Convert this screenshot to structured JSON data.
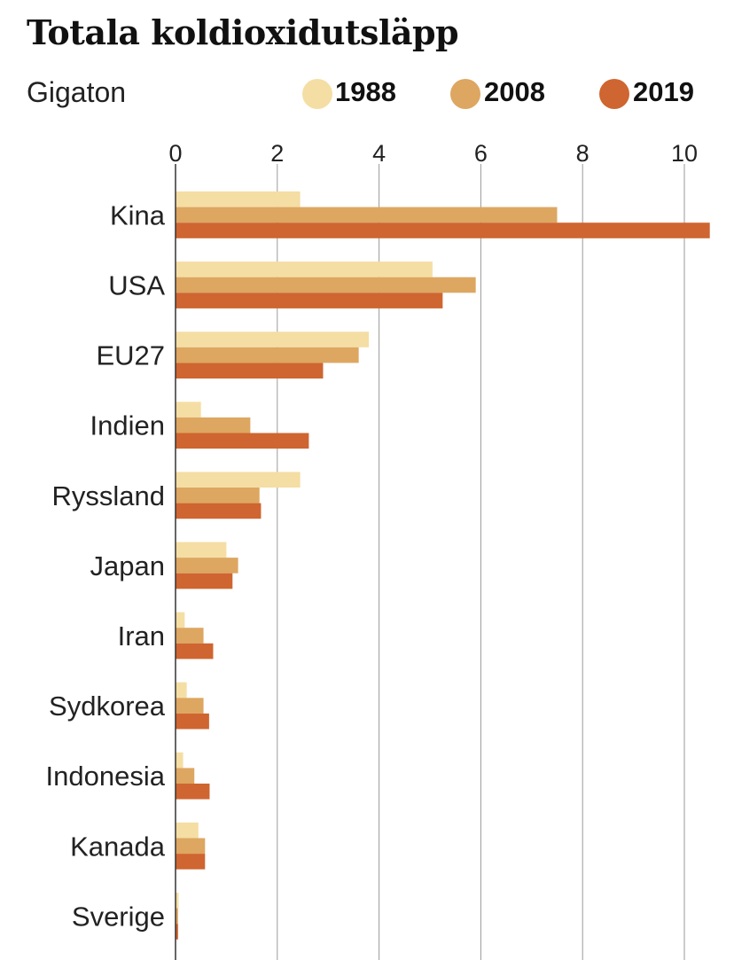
{
  "chart_data": {
    "type": "bar",
    "orientation": "horizontal",
    "title": "Totala koldioxidutsläpp",
    "unit": "Gigaton",
    "xlim": [
      0,
      10.5
    ],
    "xticks": [
      0,
      2,
      4,
      6,
      8,
      10
    ],
    "categories": [
      "Kina",
      "USA",
      "EU27",
      "Indien",
      "Ryssland",
      "Japan",
      "Iran",
      "Sydkorea",
      "Indonesia",
      "Kanada",
      "Sverige"
    ],
    "series": [
      {
        "name": "1988",
        "color": "#f5dea4",
        "values": [
          2.45,
          5.05,
          3.8,
          0.5,
          2.45,
          1.0,
          0.18,
          0.22,
          0.15,
          0.45,
          0.06
        ]
      },
      {
        "name": "2008",
        "color": "#dda761",
        "values": [
          7.5,
          5.9,
          3.6,
          1.47,
          1.65,
          1.23,
          0.55,
          0.55,
          0.37,
          0.58,
          0.05
        ]
      },
      {
        "name": "2019",
        "color": "#cf6530",
        "values": [
          10.5,
          5.25,
          2.9,
          2.62,
          1.68,
          1.12,
          0.74,
          0.66,
          0.67,
          0.58,
          0.05
        ]
      }
    ],
    "grid": true,
    "legend": "top-right"
  }
}
